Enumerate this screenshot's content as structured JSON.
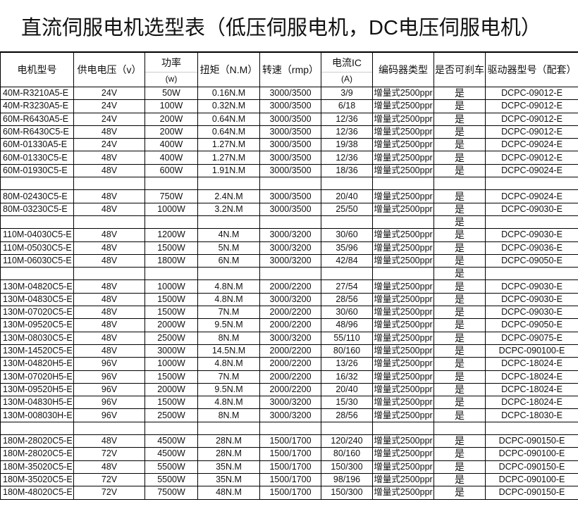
{
  "title": "直流伺服电机选型表（低压伺服电机，DC电压伺服电机）",
  "headers": {
    "model": "电机型号",
    "voltage": "供电电压（v）",
    "power": "功率",
    "power_unit": "(w)",
    "torque": "扭矩（N.M）",
    "speed": "转速（rmp）",
    "current": "电流IC",
    "current_unit": "(A)",
    "encoder": "编码器类型",
    "brake": "是否可刹车",
    "driver": "驱动器型号（配套）"
  },
  "rows": [
    [
      "40M-R3210A5-E",
      "24V",
      "50W",
      "0.16N.M",
      "3000/3500",
      "3/9",
      "增量式2500ppr",
      "是",
      "DCPC-09012-E"
    ],
    [
      "40M-R3230A5-E",
      "24V",
      "100W",
      "0.32N.M",
      "3000/3500",
      "6/18",
      "增量式2500ppr",
      "是",
      "DCPC-09012-E"
    ],
    [
      "60M-R6430A5-E",
      "24V",
      "200W",
      "0.64N.M",
      "3000/3500",
      "12/36",
      "增量式2500ppr",
      "是",
      "DCPC-09012-E"
    ],
    [
      "60M-R6430C5-E",
      "48V",
      "200W",
      "0.64N.M",
      "3000/3500",
      "12/36",
      "增量式2500ppr",
      "是",
      "DCPC-09012-E"
    ],
    [
      "60M-01330A5-E",
      "24V",
      "400W",
      "1.27N.M",
      "3000/3500",
      "19/38",
      "增量式2500ppr",
      "是",
      "DCPC-09024-E"
    ],
    [
      "60M-01330C5-E",
      "48V",
      "400W",
      "1.27N.M",
      "3000/3500",
      "12/36",
      "增量式2500ppr",
      "是",
      "DCPC-09012-E"
    ],
    [
      "60M-01930C5-E",
      "48V",
      "600W",
      "1.91N.M",
      "3000/3500",
      "18/36",
      "增量式2500ppr",
      "是",
      "DCPC-09024-E"
    ],
    [
      "",
      "",
      "",
      "",
      "",
      "",
      "",
      "",
      ""
    ],
    [
      "80M-02430C5-E",
      "48V",
      "750W",
      "2.4N.M",
      "3000/3500",
      "20/40",
      "增量式2500ppr",
      "是",
      "DCPC-09024-E"
    ],
    [
      "80M-03230C5-E",
      "48V",
      "1000W",
      "3.2N.M",
      "3000/3500",
      "25/50",
      "增量式2500ppr",
      "是",
      "DCPC-09030-E"
    ],
    [
      "",
      "",
      "",
      "",
      "",
      "",
      "",
      "是",
      ""
    ],
    [
      "110M-04030C5-E",
      "48V",
      "1200W",
      "4N.M",
      "3000/3200",
      "30/60",
      "增量式2500ppr",
      "是",
      "DCPC-09030-E"
    ],
    [
      "110M-05030C5-E",
      "48V",
      "1500W",
      "5N.M",
      "3000/3200",
      "35/96",
      "增量式2500ppr",
      "是",
      "DCPC-09036-E"
    ],
    [
      "110M-06030C5-E",
      "48V",
      "1800W",
      "6N.M",
      "3000/3200",
      "42/84",
      "增量式2500ppr",
      "是",
      "DCPC-09050-E"
    ],
    [
      "",
      "",
      "",
      "",
      "",
      "",
      "",
      "是",
      ""
    ],
    [
      "130M-04820C5-E",
      "48V",
      "1000W",
      "4.8N.M",
      "2000/2200",
      "27/54",
      "增量式2500ppr",
      "是",
      "DCPC-09030-E"
    ],
    [
      "130M-04830C5-E",
      "48V",
      "1500W",
      "4.8N.M",
      "3000/3200",
      "28/56",
      "增量式2500ppr",
      "是",
      "DCPC-09030-E"
    ],
    [
      "130M-07020C5-E",
      "48V",
      "1500W",
      "7N.M",
      "2000/2200",
      "30/60",
      "增量式2500ppr",
      "是",
      "DCPC-09030-E"
    ],
    [
      "130M-09520C5-E",
      "48V",
      "2000W",
      "9.5N.M",
      "2000/2200",
      "48/96",
      "增量式2500ppr",
      "是",
      "DCPC-09050-E"
    ],
    [
      "130M-08030C5-E",
      "48V",
      "2500W",
      "8N.M",
      "3000/3200",
      "55/110",
      "增量式2500ppr",
      "是",
      "DCPC-09075-E"
    ],
    [
      "130M-14520C5-E",
      "48V",
      "3000W",
      "14.5N.M",
      "2000/2200",
      "80/160",
      "增量式2500ppr",
      "是",
      "DCPC-090100-E"
    ],
    [
      "130M-04820H5-E",
      "96V",
      "1000W",
      "4.8N.M",
      "2000/2200",
      "13/26",
      "增量式2500ppr",
      "是",
      "DCPC-18024-E"
    ],
    [
      "130M-07020H5-E",
      "96V",
      "1500W",
      "7N.M",
      "2000/2200",
      "16/32",
      "增量式2500ppr",
      "是",
      "DCPC-18024-E"
    ],
    [
      "130M-09520H5-E",
      "96V",
      "2000W",
      "9.5N.M",
      "2000/2200",
      "20/40",
      "增量式2500ppr",
      "是",
      "DCPC-18024-E"
    ],
    [
      "130M-04830H5-E",
      "96V",
      "1500W",
      "4.8N.M",
      "3000/3200",
      "15/30",
      "增量式2500ppr",
      "是",
      "DCPC-18024-E"
    ],
    [
      "130M-008030H-E",
      "96V",
      "2500W",
      "8N.M",
      "3000/3200",
      "28/56",
      "增量式2500ppr",
      "是",
      "DCPC-18030-E"
    ],
    [
      "",
      "",
      "",
      "",
      "",
      "",
      "",
      "",
      ""
    ],
    [
      "180M-28020C5-E",
      "48V",
      "4500W",
      "28N.M",
      "1500/1700",
      "120/240",
      "增量式2500ppr",
      "是",
      "DCPC-090150-E"
    ],
    [
      "180M-28020C5-E",
      "72V",
      "4500W",
      "28N.M",
      "1500/1700",
      "80/160",
      "增量式2500ppr",
      "是",
      "DCPC-090100-E"
    ],
    [
      "180M-35020C5-E",
      "48V",
      "5500W",
      "35N.M",
      "1500/1700",
      "150/300",
      "增量式2500ppr",
      "是",
      "DCPC-090150-E"
    ],
    [
      "180M-35020C5-E",
      "72V",
      "5500W",
      "35N.M",
      "1500/1700",
      "98/196",
      "增量式2500ppr",
      "是",
      "DCPC-090100-E"
    ],
    [
      "180M-48020C5-E",
      "72V",
      "7500W",
      "48N.M",
      "1500/1700",
      "150/300",
      "增量式2500ppr",
      "是",
      "DCPC-090150-E"
    ]
  ]
}
